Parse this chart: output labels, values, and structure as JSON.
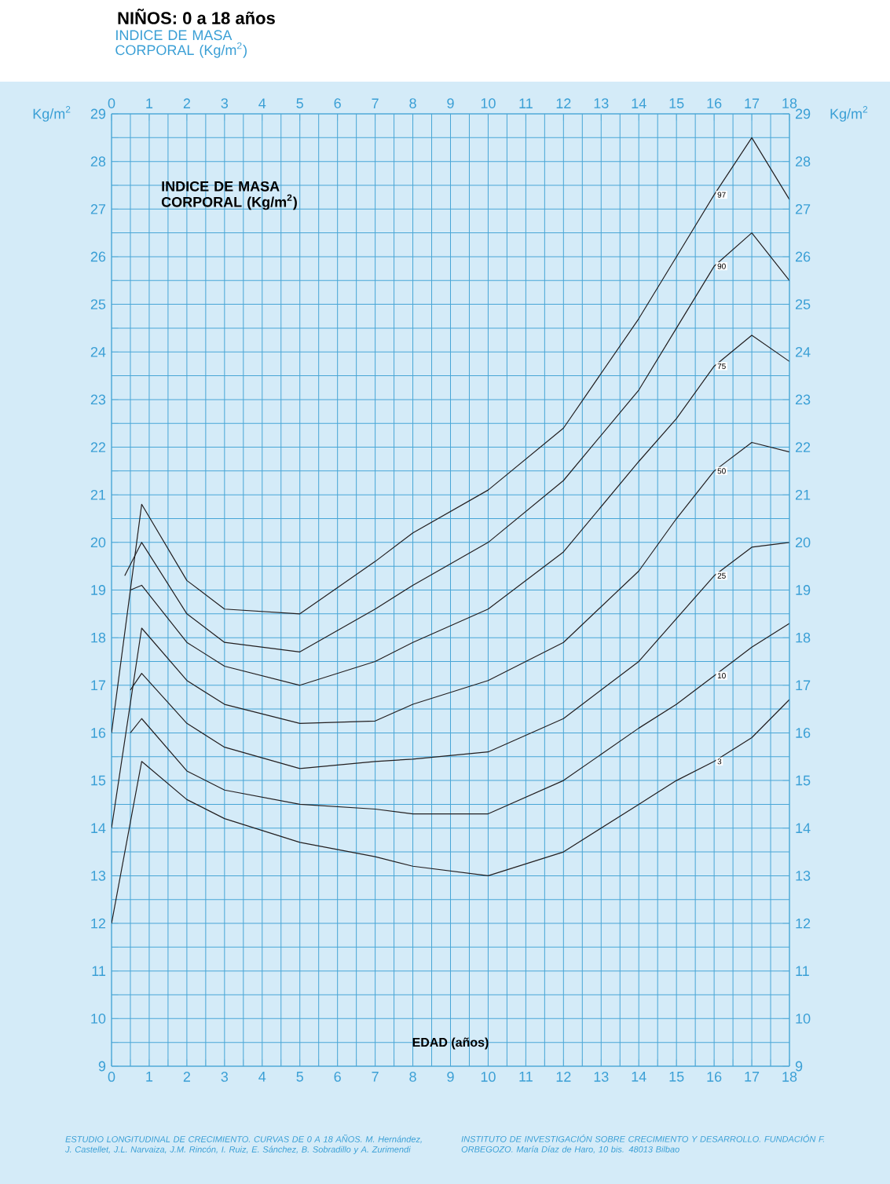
{
  "chart_data": {
    "type": "line",
    "title": "NIÑOS: 0 a 18 años",
    "subtitle": "INDICE DE MASA CORPORAL (Kg/m$^{2}$)",
    "xlabel": "EDAD (años)",
    "ylabel": "Kg/m$^{2}$",
    "y2label": "Kg/m$^{2}$",
    "annotations": [
      "INDICE DE MASA CORPORAL (Kg/m$^{2}$)",
      "ESTUDIO LONGITUDINAL DE CRECIMIENTO. CURVAS DE 0 A 18 AÑOS. M. Hernández, J. Castellet, J.L. Narvaiza, J.M. Rincón, I. Ruiz, E. Sánchez, B. Sobradillo y A. Zurimendi",
      "INSTITUTO DE INVESTIGACIÓN SOBRE CRECIMIENTO Y DESARROLLO. FUNDACIÓN F. ORBEGOZO. María Díaz de Haro, 10 bis. 48013 Bilbao"
    ],
    "xlim": [
      0,
      18
    ],
    "ylim": [
      9,
      29
    ],
    "x2lim": [
      0,
      18
    ],
    "y2lim": [
      9,
      29
    ],
    "xticks": [
      0,
      {
        "value": 0.5,
        "label": null
      },
      1,
      {
        "value": 1.5,
        "label": null
      },
      2,
      {
        "value": 2.5,
        "label": null
      },
      3,
      {
        "value": 3.5,
        "label": null
      },
      4,
      {
        "value": 4.5,
        "label": null
      },
      5,
      {
        "value": 5.5,
        "label": null
      },
      6,
      {
        "value": 6.5,
        "label": null
      },
      7,
      {
        "value": 7.5,
        "label": null
      },
      8,
      {
        "value": 8.5,
        "label": null
      },
      9,
      {
        "value": 9.5,
        "label": null
      },
      10,
      {
        "value": 10.5,
        "label": null
      },
      11,
      {
        "value": 11.5,
        "label": null
      },
      12,
      {
        "value": 12.5,
        "label": null
      },
      13,
      {
        "value": 13.5,
        "label": null
      },
      14,
      {
        "value": 14.5,
        "label": null
      },
      15,
      {
        "value": 15.5,
        "label": null
      },
      16,
      {
        "value": 16.5,
        "label": null
      },
      17,
      {
        "value": 17.5,
        "label": null
      },
      18
    ],
    "x2ticks": [
      0,
      1,
      2,
      3,
      4,
      5,
      6,
      7,
      8,
      9,
      10,
      11,
      12,
      13,
      14,
      15,
      16,
      17,
      18
    ],
    "yticks": [
      9,
      {
        "value": 9.5,
        "label": null
      },
      10,
      {
        "value": 10.5,
        "label": null
      },
      11,
      {
        "value": 11.5,
        "label": null
      },
      12,
      {
        "value": 12.5,
        "label": null
      },
      13,
      {
        "value": 13.5,
        "label": null
      },
      14,
      {
        "value": 14.5,
        "label": null
      },
      15,
      {
        "value": 15.5,
        "label": null
      },
      16,
      {
        "value": 16.5,
        "label": null
      },
      17,
      {
        "value": 17.5,
        "label": null
      },
      18,
      {
        "value": 18.5,
        "label": null
      },
      19,
      {
        "value": 19.5,
        "label": null
      },
      20,
      {
        "value": 20.5,
        "label": null
      },
      21,
      {
        "value": 21.5,
        "label": null
      },
      22,
      {
        "value": 22.5,
        "label": null
      },
      23,
      {
        "value": 23.5,
        "label": null
      },
      24,
      {
        "value": 24.5,
        "label": null
      },
      25,
      {
        "value": 25.5,
        "label": null
      },
      26,
      {
        "value": 26.5,
        "label": null
      },
      27,
      {
        "value": 27.5,
        "label": null
      },
      28,
      {
        "value": 28.5,
        "label": null
      },
      29
    ],
    "y2ticks": [
      9,
      10,
      11,
      12,
      13,
      14,
      15,
      16,
      17,
      18,
      19,
      20,
      21,
      22,
      23,
      24,
      25,
      26,
      27,
      28,
      29
    ],
    "grid": true,
    "series": [
      {
        "name": "97",
        "color": "#231f20",
        "x": [
          0,
          0.8,
          2,
          3,
          5,
          7,
          8,
          10,
          12,
          14,
          15,
          16,
          17,
          18
        ],
        "values": [
          16.0,
          20.8,
          19.2,
          18.6,
          18.5,
          19.6,
          20.2,
          21.1,
          22.4,
          24.7,
          26.0,
          27.3,
          28.5,
          27.2
        ]
      },
      {
        "name": "90",
        "color": "#231f20",
        "x": [
          0.35,
          0.8,
          2,
          3,
          5,
          7,
          8,
          10,
          12,
          14,
          15,
          16,
          17,
          18
        ],
        "values": [
          19.3,
          20.0,
          18.5,
          17.9,
          17.7,
          18.6,
          19.1,
          20.0,
          21.3,
          23.2,
          24.5,
          25.8,
          26.5,
          25.5
        ]
      },
      {
        "name": "75",
        "color": "#231f20",
        "x": [
          0.5,
          0.8,
          2,
          3,
          5,
          7,
          8,
          10,
          12,
          14,
          15,
          16,
          17,
          18
        ],
        "values": [
          19.0,
          19.1,
          17.9,
          17.4,
          17.0,
          17.5,
          17.9,
          18.6,
          19.8,
          21.7,
          22.6,
          23.7,
          24.35,
          23.8
        ]
      },
      {
        "name": "50",
        "color": "#231f20",
        "x": [
          0,
          0.8,
          2,
          3,
          5,
          7,
          8,
          10,
          12,
          14,
          15,
          16,
          17,
          18
        ],
        "values": [
          14.0,
          18.2,
          17.1,
          16.6,
          16.2,
          16.25,
          16.6,
          17.1,
          17.9,
          19.4,
          20.5,
          21.5,
          22.1,
          21.9
        ]
      },
      {
        "name": "25",
        "color": "#231f20",
        "x": [
          0.5,
          0.8,
          2,
          3,
          5,
          7,
          8,
          10,
          12,
          14,
          15,
          16,
          17,
          18
        ],
        "values": [
          16.9,
          17.25,
          16.2,
          15.7,
          15.25,
          15.4,
          15.45,
          15.6,
          16.3,
          17.5,
          18.4,
          19.3,
          19.9,
          20.0
        ]
      },
      {
        "name": "10",
        "color": "#231f20",
        "x": [
          0.5,
          0.8,
          2,
          3,
          5,
          7,
          8,
          10,
          12,
          14,
          15,
          16,
          17,
          18
        ],
        "values": [
          16.0,
          16.3,
          15.2,
          14.8,
          14.5,
          14.4,
          14.3,
          14.3,
          15.0,
          16.1,
          16.6,
          17.2,
          17.8,
          18.3
        ]
      },
      {
        "name": "3",
        "color": "#231f20",
        "x": [
          0,
          0.8,
          2,
          3,
          5,
          7,
          8,
          10,
          12,
          14,
          15,
          16,
          17,
          18
        ],
        "values": [
          12.0,
          15.4,
          14.6,
          14.2,
          13.7,
          13.4,
          13.2,
          13.0,
          13.5,
          14.5,
          15.0,
          15.4,
          15.9,
          16.7
        ]
      }
    ]
  }
}
